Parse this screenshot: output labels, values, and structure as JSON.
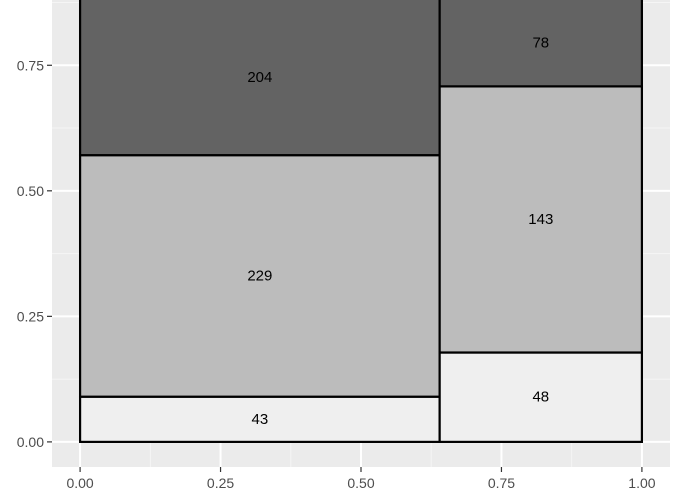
{
  "chart_data": {
    "type": "mosaic",
    "x_ticks": [
      0.0,
      0.25,
      0.5,
      0.75,
      1.0
    ],
    "x_tick_labels": [
      "0.00",
      "0.25",
      "0.50",
      "0.75",
      "1.00"
    ],
    "y_ticks": [
      0.0,
      0.25,
      0.5,
      0.75
    ],
    "y_tick_labels": [
      "0.00",
      "0.25",
      "0.50",
      "0.75"
    ],
    "xlim": [
      -0.05,
      1.05
    ],
    "ylim": [
      -0.05,
      0.88
    ],
    "grid": true,
    "columns": [
      {
        "x_start": 0.0,
        "x_end": 0.64,
        "segments": [
          {
            "y_start": 0.0,
            "y_end": 0.09,
            "value": 43,
            "label": "43",
            "fill": "#efefef"
          },
          {
            "y_start": 0.09,
            "y_end": 0.571,
            "value": 229,
            "label": "229",
            "fill": "#bcbcbc"
          },
          {
            "y_start": 0.571,
            "y_end": 1.0,
            "value": 204,
            "label": "204",
            "fill": "#636363"
          }
        ]
      },
      {
        "x_start": 0.64,
        "x_end": 1.0,
        "segments": [
          {
            "y_start": 0.0,
            "y_end": 0.178,
            "value": 48,
            "label": "48",
            "fill": "#efefef"
          },
          {
            "y_start": 0.178,
            "y_end": 0.708,
            "value": 143,
            "label": "143",
            "fill": "#bcbcbc"
          },
          {
            "y_start": 0.708,
            "y_end": 1.0,
            "value": 78,
            "label": "78",
            "fill": "#636363"
          }
        ]
      }
    ]
  },
  "colors": {
    "panel_background": "#ebebeb",
    "grid_major": "#ffffff",
    "grid_minor": "#f5f5f5",
    "cell_border": "#000000",
    "axis_tick": "#333333"
  }
}
